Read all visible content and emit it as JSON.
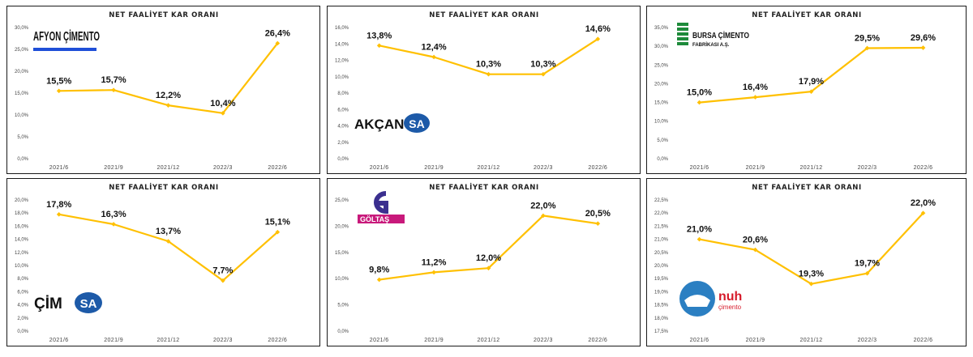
{
  "colors": {
    "line": "#FFC000",
    "marker": "#FFC000",
    "border": "#1a1a1a"
  },
  "chart_data": [
    {
      "type": "line",
      "title": "NET FAALİYET KAR ORANI",
      "logo_text": "AFYON ÇİMENTO",
      "categories": [
        "2021/6",
        "2021/9",
        "2021/12",
        "2022/3",
        "2022/6"
      ],
      "values": [
        15.5,
        15.7,
        12.2,
        10.4,
        26.4
      ],
      "value_labels": [
        "15,5%",
        "15,7%",
        "12,2%",
        "10,4%",
        "26,4%"
      ],
      "yticks": [
        "0,0%",
        "5,0%",
        "10,0%",
        "15,0%",
        "20,0%",
        "25,0%",
        "30,0%"
      ],
      "ylim": [
        0,
        30
      ],
      "xlabel": "",
      "ylabel": "",
      "grid": false
    },
    {
      "type": "line",
      "title": "NET FAALİYET KAR ORANI",
      "logo_text": {
        "part1": "AKÇAN",
        "part2": "SA"
      },
      "categories": [
        "2021/6",
        "2021/9",
        "2021/12",
        "2022/3",
        "2022/6"
      ],
      "values": [
        13.8,
        12.4,
        10.3,
        10.3,
        14.6
      ],
      "value_labels": [
        "13,8%",
        "12,4%",
        "10,3%",
        "10,3%",
        "14,6%"
      ],
      "yticks": [
        "0,0%",
        "2,0%",
        "4,0%",
        "6,0%",
        "8,0%",
        "10,0%",
        "12,0%",
        "14,0%",
        "16,0%"
      ],
      "ylim": [
        0,
        16
      ],
      "xlabel": "",
      "ylabel": "",
      "grid": false
    },
    {
      "type": "line",
      "title": "NET FAALİYET KAR ORANI",
      "logo_text": {
        "line1": "BURSA ÇİMENTO",
        "line2": "FABRİKASI A.Ş."
      },
      "categories": [
        "2021/6",
        "2021/9",
        "2021/12",
        "2022/3",
        "2022/6"
      ],
      "values": [
        15.0,
        16.4,
        17.9,
        29.5,
        29.6
      ],
      "value_labels": [
        "15,0%",
        "16,4%",
        "17,9%",
        "29,5%",
        "29,6%"
      ],
      "yticks": [
        "0,0%",
        "5,0%",
        "10,0%",
        "15,0%",
        "20,0%",
        "25,0%",
        "30,0%",
        "35,0%"
      ],
      "ylim": [
        0,
        35
      ],
      "xlabel": "",
      "ylabel": "",
      "grid": false
    },
    {
      "type": "line",
      "title": "NET FAALİYET KAR ORANI",
      "logo_text": {
        "part1": "ÇİM",
        "part2": "SA"
      },
      "categories": [
        "2021/6",
        "2021/9",
        "2021/12",
        "2022/3",
        "2022/6"
      ],
      "values": [
        17.8,
        16.3,
        13.7,
        7.7,
        15.1
      ],
      "value_labels": [
        "17,8%",
        "16,3%",
        "13,7%",
        "7,7%",
        "15,1%"
      ],
      "yticks": [
        "0,0%",
        "2,0%",
        "4,0%",
        "6,0%",
        "8,0%",
        "10,0%",
        "12,0%",
        "14,0%",
        "16,0%",
        "18,0%",
        "20,0%"
      ],
      "ylim": [
        0,
        20
      ],
      "xlabel": "",
      "ylabel": "",
      "grid": false
    },
    {
      "type": "line",
      "title": "NET FAALİYET KAR ORANI",
      "logo_text": "GÖLTAŞ",
      "categories": [
        "2021/6",
        "2021/9",
        "2021/12",
        "2022/3",
        "2022/6"
      ],
      "values": [
        9.8,
        11.2,
        12.0,
        22.0,
        20.5
      ],
      "value_labels": [
        "9,8%",
        "11,2%",
        "12,0%",
        "22,0%",
        "20,5%"
      ],
      "yticks": [
        "0,0%",
        "5,0%",
        "10,0%",
        "15,0%",
        "20,0%",
        "25,0%"
      ],
      "ylim": [
        0,
        25
      ],
      "xlabel": "",
      "ylabel": "",
      "grid": false
    },
    {
      "type": "line",
      "title": "NET FAALİYET KAR ORANI",
      "logo_text": {
        "line1": "nuh",
        "line2": "çimento"
      },
      "categories": [
        "2021/6",
        "2021/9",
        "2021/12",
        "2022/3",
        "2022/6"
      ],
      "values": [
        21.0,
        20.6,
        19.3,
        19.7,
        22.0
      ],
      "value_labels": [
        "21,0%",
        "20,6%",
        "19,3%",
        "19,7%",
        "22,0%"
      ],
      "yticks": [
        "17,5%",
        "18,0%",
        "18,5%",
        "19,0%",
        "19,5%",
        "20,0%",
        "20,5%",
        "21,0%",
        "21,5%",
        "22,0%",
        "22,5%"
      ],
      "ylim": [
        17.5,
        22.5
      ],
      "xlabel": "",
      "ylabel": "",
      "grid": false
    }
  ]
}
